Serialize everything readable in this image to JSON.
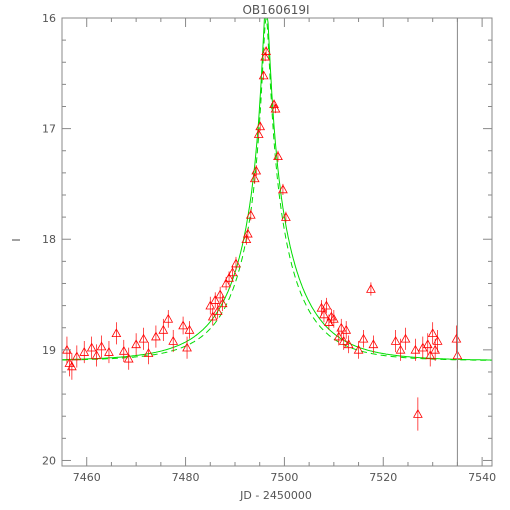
{
  "chart_data": {
    "type": "scatter",
    "title": "OB160619I",
    "xlabel": "JD - 2450000",
    "ylabel": "I",
    "xlim": [
      7455,
      7542
    ],
    "ylim": [
      20.05,
      16.0
    ],
    "y_inverted": true,
    "x_ticks": [
      "7460",
      "7480",
      "7500",
      "7520",
      "7540"
    ],
    "y_ticks": [
      "16",
      "17",
      "18",
      "19",
      "20"
    ],
    "vertical_marker_x": 7535,
    "colors": {
      "axis": "#888888",
      "data": "#ff0000",
      "model": "#00dd00"
    },
    "model_params": {
      "t0": 7496.3,
      "tE": 12,
      "u0": 0.05,
      "baseline": 19.1
    },
    "series": [
      {
        "marker": "open-triangle",
        "points": [
          {
            "x": 7456.0,
            "y": 19.0,
            "err": 0.12
          },
          {
            "x": 7456.5,
            "y": 19.12,
            "err": 0.12
          },
          {
            "x": 7457.0,
            "y": 19.15,
            "err": 0.12
          },
          {
            "x": 7458.0,
            "y": 19.06,
            "err": 0.1
          },
          {
            "x": 7459.5,
            "y": 19.02,
            "err": 0.1
          },
          {
            "x": 7461.0,
            "y": 18.98,
            "err": 0.1
          },
          {
            "x": 7462.0,
            "y": 19.05,
            "err": 0.1
          },
          {
            "x": 7463.0,
            "y": 18.97,
            "err": 0.1
          },
          {
            "x": 7464.5,
            "y": 19.02,
            "err": 0.1
          },
          {
            "x": 7466.0,
            "y": 18.85,
            "err": 0.1
          },
          {
            "x": 7467.5,
            "y": 19.01,
            "err": 0.1
          },
          {
            "x": 7468.5,
            "y": 19.08,
            "err": 0.1
          },
          {
            "x": 7470.0,
            "y": 18.95,
            "err": 0.1
          },
          {
            "x": 7471.5,
            "y": 18.9,
            "err": 0.1
          },
          {
            "x": 7472.5,
            "y": 19.03,
            "err": 0.1
          },
          {
            "x": 7474.0,
            "y": 18.88,
            "err": 0.1
          },
          {
            "x": 7475.5,
            "y": 18.82,
            "err": 0.1
          },
          {
            "x": 7476.5,
            "y": 18.72,
            "err": 0.08
          },
          {
            "x": 7477.5,
            "y": 18.92,
            "err": 0.1
          },
          {
            "x": 7479.5,
            "y": 18.78,
            "err": 0.08
          },
          {
            "x": 7480.3,
            "y": 18.98,
            "err": 0.1
          },
          {
            "x": 7480.8,
            "y": 18.82,
            "err": 0.08
          },
          {
            "x": 7485.0,
            "y": 18.6,
            "err": 0.08
          },
          {
            "x": 7485.5,
            "y": 18.7,
            "err": 0.08
          },
          {
            "x": 7486.0,
            "y": 18.55,
            "err": 0.07
          },
          {
            "x": 7486.5,
            "y": 18.65,
            "err": 0.07
          },
          {
            "x": 7487.0,
            "y": 18.5,
            "err": 0.07
          },
          {
            "x": 7487.5,
            "y": 18.58,
            "err": 0.07
          },
          {
            "x": 7488.2,
            "y": 18.4,
            "err": 0.06
          },
          {
            "x": 7488.8,
            "y": 18.35,
            "err": 0.06
          },
          {
            "x": 7489.5,
            "y": 18.3,
            "err": 0.06
          },
          {
            "x": 7490.2,
            "y": 18.22,
            "err": 0.06
          },
          {
            "x": 7492.3,
            "y": 18.0,
            "err": 0.05
          },
          {
            "x": 7492.6,
            "y": 17.95,
            "err": 0.05
          },
          {
            "x": 7493.2,
            "y": 17.78,
            "err": 0.05
          },
          {
            "x": 7494.0,
            "y": 17.45,
            "err": 0.05
          },
          {
            "x": 7494.3,
            "y": 17.38,
            "err": 0.05
          },
          {
            "x": 7494.8,
            "y": 17.05,
            "err": 0.04
          },
          {
            "x": 7495.1,
            "y": 16.98,
            "err": 0.04
          },
          {
            "x": 7495.8,
            "y": 16.52,
            "err": 0.04
          },
          {
            "x": 7496.1,
            "y": 16.35,
            "err": 0.04
          },
          {
            "x": 7496.3,
            "y": 16.3,
            "err": 0.04
          },
          {
            "x": 7497.9,
            "y": 16.78,
            "err": 0.04
          },
          {
            "x": 7498.2,
            "y": 16.82,
            "err": 0.04
          },
          {
            "x": 7498.7,
            "y": 17.25,
            "err": 0.05
          },
          {
            "x": 7499.7,
            "y": 17.55,
            "err": 0.05
          },
          {
            "x": 7500.3,
            "y": 17.8,
            "err": 0.05
          },
          {
            "x": 7507.5,
            "y": 18.62,
            "err": 0.07
          },
          {
            "x": 7508.0,
            "y": 18.68,
            "err": 0.07
          },
          {
            "x": 7508.5,
            "y": 18.6,
            "err": 0.07
          },
          {
            "x": 7509.0,
            "y": 18.75,
            "err": 0.07
          },
          {
            "x": 7509.5,
            "y": 18.7,
            "err": 0.07
          },
          {
            "x": 7510.0,
            "y": 18.72,
            "err": 0.08
          },
          {
            "x": 7511.0,
            "y": 18.88,
            "err": 0.08
          },
          {
            "x": 7511.5,
            "y": 18.8,
            "err": 0.08
          },
          {
            "x": 7512.0,
            "y": 18.92,
            "err": 0.08
          },
          {
            "x": 7512.5,
            "y": 18.82,
            "err": 0.08
          },
          {
            "x": 7513.0,
            "y": 18.95,
            "err": 0.08
          },
          {
            "x": 7515.0,
            "y": 19.0,
            "err": 0.08
          },
          {
            "x": 7516.0,
            "y": 18.9,
            "err": 0.08
          },
          {
            "x": 7517.5,
            "y": 18.45,
            "err": 0.06
          },
          {
            "x": 7518.0,
            "y": 18.95,
            "err": 0.08
          },
          {
            "x": 7522.5,
            "y": 18.92,
            "err": 0.1
          },
          {
            "x": 7523.5,
            "y": 19.0,
            "err": 0.1
          },
          {
            "x": 7524.5,
            "y": 18.9,
            "err": 0.1
          },
          {
            "x": 7526.5,
            "y": 19.0,
            "err": 0.1
          },
          {
            "x": 7527.0,
            "y": 19.58,
            "err": 0.15
          },
          {
            "x": 7528.0,
            "y": 18.98,
            "err": 0.1
          },
          {
            "x": 7529.0,
            "y": 18.95,
            "err": 0.1
          },
          {
            "x": 7529.5,
            "y": 19.05,
            "err": 0.1
          },
          {
            "x": 7530.0,
            "y": 18.85,
            "err": 0.1
          },
          {
            "x": 7530.5,
            "y": 19.0,
            "err": 0.1
          },
          {
            "x": 7531.0,
            "y": 18.92,
            "err": 0.1
          },
          {
            "x": 7534.8,
            "y": 18.9,
            "err": 0.12
          },
          {
            "x": 7535.0,
            "y": 19.05,
            "err": 0.12
          }
        ]
      }
    ]
  }
}
